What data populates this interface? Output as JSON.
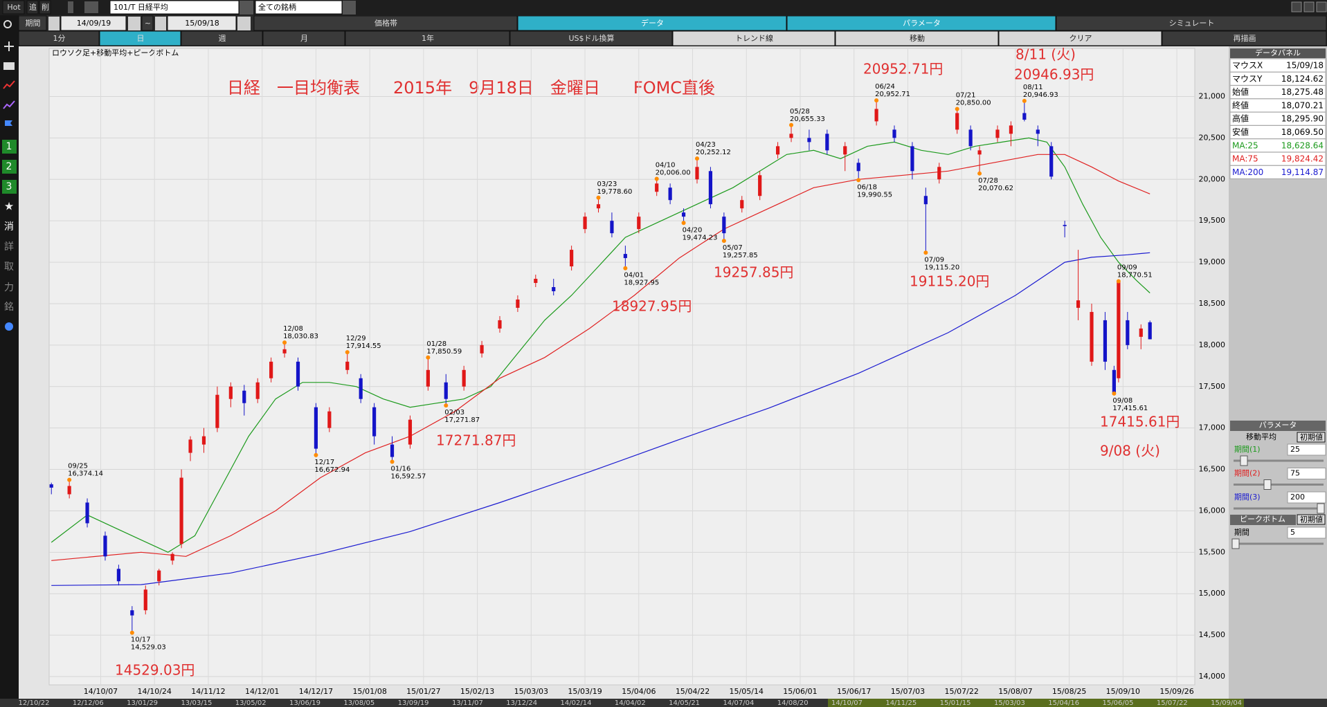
{
  "ui": {
    "toolbar": [
      "Hot",
      "追",
      "削"
    ],
    "symbol": "101/T 日経平均",
    "universe": "全ての銘柄",
    "period_label": "期間",
    "date_from": "14/09/19",
    "range_sep": "~",
    "date_to": "15/09/18",
    "tabs": [
      "価格帯",
      "データ",
      "パラメータ",
      "シミュレート"
    ],
    "buttons": [
      "1分",
      "日",
      "週",
      "月",
      "1年",
      "US$ドル換算",
      "トレンド線",
      "移動",
      "クリア",
      "再描画"
    ],
    "side": [
      "1",
      "2",
      "3",
      "消",
      "詳",
      "取",
      "力",
      "銘"
    ],
    "strip": [
      "12/10/22",
      "12/12/06",
      "13/01/29",
      "13/03/15",
      "13/05/02",
      "13/06/19",
      "13/08/05",
      "13/09/19",
      "13/11/07",
      "13/12/24",
      "14/02/14",
      "14/04/02",
      "14/05/21",
      "14/07/04",
      "14/08/20",
      "14/10/07",
      "14/11/25",
      "15/01/15",
      "15/03/03",
      "15/04/16",
      "15/06/05",
      "15/07/22",
      "15/09/04"
    ]
  },
  "panel": {
    "title": "データパネル",
    "rows": [
      [
        "マウスX",
        "15/09/18"
      ],
      [
        "マウスY",
        "18,124.62"
      ],
      [
        "始値",
        "18,275.48"
      ],
      [
        "終値",
        "18,070.21"
      ],
      [
        "高値",
        "18,295.90"
      ],
      [
        "安値",
        "18,069.50"
      ],
      [
        "MA:25",
        "18,628.64"
      ],
      [
        "MA:75",
        "19,824.42"
      ],
      [
        "MA:200",
        "19,114.87"
      ]
    ],
    "param_title": "パラメータ",
    "ma_title": "移動平均",
    "reset": "初期値",
    "periods": [
      {
        "label": "期間(1)",
        "value": 25
      },
      {
        "label": "期間(2)",
        "value": 75
      },
      {
        "label": "期間(3)",
        "value": 200
      }
    ],
    "peak_title": "ピークボトム",
    "peak_reset": "初期値",
    "peak_period": {
      "label": "期間",
      "value": 5
    }
  },
  "chart_data": {
    "type": "candlestick",
    "title": "日経　一目均衡表　　2015年　9月18日　金曜日　　FOMC直後",
    "subtitle": "ロウソク足+移動平均+ピークボトム",
    "x": [
      0,
      4,
      8,
      12,
      15,
      18,
      21,
      24,
      27,
      29,
      31,
      34,
      37,
      40,
      43,
      46,
      49,
      52,
      55,
      59,
      62,
      66,
      69,
      72,
      76,
      80,
      84,
      88,
      92,
      96,
      100,
      104,
      108,
      112,
      116,
      119,
      122,
      125,
      128,
      131,
      135,
      138,
      141,
      144,
      147,
      150,
      154,
      158,
      162,
      165,
      169,
      173,
      177,
      180,
      184,
      188,
      192,
      195,
      198,
      202,
      205,
      207,
      211,
      214,
      217,
      220,
      223,
      226,
      229,
      232,
      235,
      237,
      238,
      240,
      243,
      245
    ],
    "open": [
      16320,
      16200,
      16100,
      15700,
      15300,
      14800,
      14800,
      15150,
      15400,
      15600,
      16700,
      16800,
      17000,
      17350,
      17450,
      17350,
      17600,
      17900,
      17800,
      17250,
      17000,
      17700,
      17600,
      17250,
      16800,
      16800,
      17500,
      17550,
      17500,
      17900,
      18200,
      18450,
      18750,
      18700,
      18950,
      19400,
      19650,
      19500,
      19100,
      19400,
      19850,
      19900,
      19600,
      20000,
      20100,
      19550,
      19650,
      19800,
      20300,
      20500,
      20500,
      20550,
      20300,
      20200,
      20700,
      20600,
      20400,
      19800,
      20000,
      20600,
      20600,
      20300,
      20500,
      20550,
      20800,
      20600,
      20400,
      19450,
      18450,
      17800,
      18300,
      17700,
      17600,
      18300,
      18100,
      18275.48
    ],
    "high": [
      16340,
      16374.14,
      16150,
      15750,
      15350,
      14850,
      15100,
      15300,
      15500,
      16500,
      16900,
      17000,
      17500,
      17550,
      17520,
      17600,
      17850,
      18030.83,
      17850,
      17300,
      17250,
      17914.55,
      17650,
      17300,
      16900,
      17150,
      17850.59,
      17650,
      17750,
      18050,
      18350,
      18600,
      18850,
      18800,
      19200,
      19600,
      19778.6,
      19600,
      19200,
      19600,
      20006,
      19950,
      19650,
      20252.12,
      20150,
      19600,
      19800,
      20100,
      20450,
      20655.33,
      20600,
      20600,
      20450,
      20250,
      20952.71,
      20650,
      20450,
      19900,
      20200,
      20850,
      20650,
      20400,
      20650,
      20700,
      20946.93,
      20650,
      20450,
      19500,
      19150,
      18500,
      18400,
      17750,
      18770.51,
      18400,
      18250,
      18295.9
    ],
    "low": [
      16200,
      16150,
      15800,
      15400,
      15100,
      14529.03,
      14750,
      15100,
      15350,
      15550,
      16600,
      16700,
      16950,
      17250,
      17150,
      17300,
      17550,
      17850,
      17450,
      16672.94,
      16950,
      17650,
      17300,
      16800,
      16592.57,
      16750,
      17450,
      17271.87,
      17450,
      17850,
      18150,
      18400,
      18700,
      18600,
      18900,
      19350,
      19600,
      19300,
      18927.95,
      19350,
      19800,
      19700,
      19474.23,
      19950,
      19650,
      19257.85,
      19600,
      19750,
      20250,
      20450,
      20350,
      20300,
      20100,
      19990.55,
      20650,
      20450,
      20000,
      19115.2,
      19950,
      20550,
      20350,
      20070.62,
      20450,
      20400,
      20700,
      20400,
      20000,
      19300,
      18300,
      17750,
      17700,
      17415.61,
      17550,
      17950,
      17950,
      18069.5
    ],
    "close": [
      16280,
      16300,
      15850,
      15450,
      15150,
      14738,
      15050,
      15280,
      15480,
      16400,
      16860,
      16900,
      17400,
      17500,
      17300,
      17550,
      17800,
      17950,
      17500,
      16750,
      17200,
      17800,
      17350,
      16900,
      16650,
      17100,
      17700,
      17350,
      17700,
      18000,
      18300,
      18550,
      18800,
      18650,
      19150,
      19550,
      19700,
      19350,
      19050,
      19550,
      19950,
      19750,
      19550,
      20150,
      19700,
      19350,
      19750,
      20050,
      20400,
      20550,
      20450,
      20350,
      20400,
      20100,
      20850,
      20500,
      20100,
      19700,
      20150,
      20800,
      20400,
      20350,
      20600,
      20650,
      20720,
      20550,
      20033,
      19436,
      18540,
      18400,
      17800,
      17427,
      18770,
      18000,
      18200,
      18070.21
    ],
    "up_color": "#e01818",
    "down_color": "#1414c8",
    "series": [
      {
        "color": "#1c9a1c",
        "x": [
          0,
          8,
          14,
          20,
          26,
          32,
          38,
          44,
          50,
          56,
          62,
          68,
          74,
          80,
          86,
          92,
          98,
          104,
          110,
          116,
          122,
          128,
          134,
          140,
          146,
          152,
          158,
          164,
          170,
          176,
          182,
          188,
          194,
          200,
          206,
          212,
          218,
          222,
          226,
          230,
          234,
          238,
          242,
          245
        ],
        "values": [
          15620,
          15950,
          15800,
          15650,
          15500,
          15700,
          16300,
          16900,
          17350,
          17550,
          17550,
          17500,
          17350,
          17250,
          17300,
          17350,
          17500,
          17900,
          18300,
          18600,
          18950,
          19300,
          19450,
          19600,
          19750,
          19900,
          20100,
          20300,
          20350,
          20250,
          20400,
          20450,
          20350,
          20300,
          20400,
          20450,
          20500,
          20450,
          20150,
          19700,
          19300,
          19000,
          18780,
          18628.64
        ]
      },
      {
        "color": "#e02020",
        "x": [
          0,
          20,
          30,
          40,
          50,
          60,
          70,
          80,
          90,
          100,
          110,
          120,
          130,
          140,
          150,
          160,
          170,
          180,
          190,
          200,
          210,
          220,
          226,
          232,
          238,
          245
        ],
        "values": [
          15400,
          15500,
          15450,
          15700,
          16000,
          16400,
          16700,
          16900,
          17200,
          17600,
          17850,
          18200,
          18600,
          19050,
          19400,
          19650,
          19900,
          20000,
          20050,
          20100,
          20200,
          20300,
          20300,
          20150,
          19980,
          19824.42
        ]
      },
      {
        "color": "#1a1ad0",
        "x": [
          0,
          20,
          40,
          60,
          80,
          100,
          120,
          140,
          160,
          180,
          200,
          215,
          226,
          232,
          240,
          245
        ],
        "values": [
          15100,
          15110,
          15250,
          15480,
          15750,
          16100,
          16470,
          16860,
          17240,
          17660,
          18150,
          18600,
          19000,
          19060,
          19090,
          19114.87
        ]
      }
    ],
    "peaks": [
      {
        "x": 4,
        "date": "09/25",
        "value": 16374.14,
        "value_label": "16,374.14"
      },
      {
        "x": 18,
        "date": "10/17",
        "value": 14529.03,
        "value_label": "14,529.03"
      },
      {
        "x": 52,
        "date": "12/08",
        "value": 18030.83,
        "value_label": "18,030.83"
      },
      {
        "x": 59,
        "date": "12/17",
        "value": 16672.94,
        "value_label": "16,672.94"
      },
      {
        "x": 66,
        "date": "12/29",
        "value": 17914.55,
        "value_label": "17,914.55"
      },
      {
        "x": 76,
        "date": "01/16",
        "value": 16592.57,
        "value_label": "16,592.57"
      },
      {
        "x": 84,
        "date": "01/28",
        "value": 17850.59,
        "value_label": "17,850.59"
      },
      {
        "x": 88,
        "date": "02/03",
        "value": 17271.87,
        "value_label": "17,271.87"
      },
      {
        "x": 122,
        "date": "03/23",
        "value": 19778.6,
        "value_label": "19,778.60"
      },
      {
        "x": 128,
        "date": "04/01",
        "value": 18927.95,
        "value_label": "18,927.95"
      },
      {
        "x": 135,
        "date": "04/10",
        "value": 20006,
        "value_label": "20,006.00"
      },
      {
        "x": 141,
        "date": "04/20",
        "value": 19474.23,
        "value_label": "19,474.23"
      },
      {
        "x": 144,
        "date": "04/23",
        "value": 20252.12,
        "value_label": "20,252.12"
      },
      {
        "x": 150,
        "date": "05/07",
        "value": 19257.85,
        "value_label": "19,257.85"
      },
      {
        "x": 165,
        "date": "05/28",
        "value": 20655.33,
        "value_label": "20,655.33"
      },
      {
        "x": 180,
        "date": "06/18",
        "value": 19990.55,
        "value_label": "19,990.55"
      },
      {
        "x": 184,
        "date": "06/24",
        "value": 20952.71,
        "value_label": "20,952.71"
      },
      {
        "x": 195,
        "date": "07/09",
        "value": 19115.2,
        "value_label": "19,115.20"
      },
      {
        "x": 202,
        "date": "07/21",
        "value": 20850,
        "value_label": "20,850.00"
      },
      {
        "x": 207,
        "date": "07/28",
        "value": 20070.62,
        "value_label": "20,070.62"
      },
      {
        "x": 217,
        "date": "08/11",
        "value": 20946.93,
        "value_label": "20,946.93"
      },
      {
        "x": 237,
        "date": "09/08",
        "value": 17415.61,
        "value_label": "17,415.61"
      },
      {
        "x": 238,
        "date": "09/09",
        "value": 18770.51,
        "value_label": "18,770.51"
      }
    ],
    "notes": [
      "14529.03円",
      "17271.87円",
      "18927.95円",
      "19257.85円",
      "20952.71円",
      "19115.20円",
      "8/11 (火)",
      "20946.93円",
      "17415.61円",
      "9/08 (火)"
    ],
    "xlim": [
      -0.5,
      255
    ],
    "ylim": [
      13900,
      21580
    ],
    "xticks": [
      {
        "value": 11,
        "label": "14/10/07"
      },
      {
        "value": 23,
        "label": "14/10/24"
      },
      {
        "value": 35,
        "label": "14/11/12"
      },
      {
        "value": 47,
        "label": "14/12/01"
      },
      {
        "value": 59,
        "label": "14/12/17"
      },
      {
        "value": 71,
        "label": "15/01/08"
      },
      {
        "value": 83,
        "label": "15/01/27"
      },
      {
        "value": 95,
        "label": "15/02/13"
      },
      {
        "value": 107,
        "label": "15/03/03"
      },
      {
        "value": 119,
        "label": "15/03/19"
      },
      {
        "value": 131,
        "label": "15/04/06"
      },
      {
        "value": 143,
        "label": "15/04/22"
      },
      {
        "value": 155,
        "label": "15/05/14"
      },
      {
        "value": 167,
        "label": "15/06/01"
      },
      {
        "value": 179,
        "label": "15/06/17"
      },
      {
        "value": 191,
        "label": "15/07/03"
      },
      {
        "value": 203,
        "label": "15/07/22"
      },
      {
        "value": 215,
        "label": "15/08/07"
      },
      {
        "value": 227,
        "label": "15/08/25"
      },
      {
        "value": 239,
        "label": "15/09/10"
      },
      {
        "value": 251,
        "label": "15/09/26"
      }
    ],
    "yticks": [
      {
        "value": 14000,
        "label": "14,000"
      },
      {
        "value": 14500,
        "label": "14,500"
      },
      {
        "value": 15000,
        "label": "15,000"
      },
      {
        "value": 15500,
        "label": "15,500"
      },
      {
        "value": 16000,
        "label": "16,000"
      },
      {
        "value": 16500,
        "label": "16,500"
      },
      {
        "value": 17000,
        "label": "17,000"
      },
      {
        "value": 17500,
        "label": "17,500"
      },
      {
        "value": 18000,
        "label": "18,000"
      },
      {
        "value": 18500,
        "label": "18,500"
      },
      {
        "value": 19000,
        "label": "19,000"
      },
      {
        "value": 19500,
        "label": "19,500"
      },
      {
        "value": 20000,
        "label": "20,000"
      },
      {
        "value": 20500,
        "label": "20,500"
      },
      {
        "value": 21000,
        "label": "21,000"
      }
    ],
    "grid": true
  }
}
